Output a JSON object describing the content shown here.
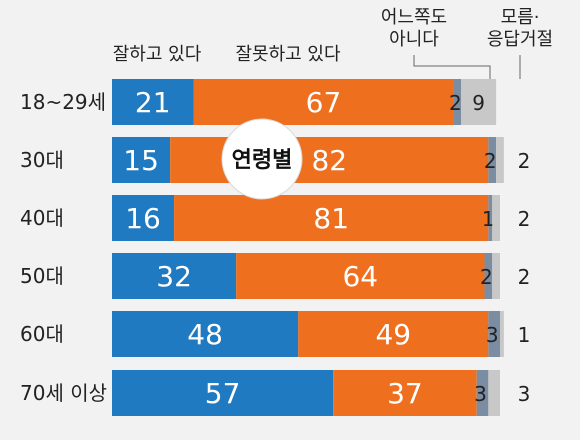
{
  "chart_data": {
    "type": "bar",
    "stacked": true,
    "orientation": "horizontal",
    "badge": "연령별",
    "categories": [
      "18~29세",
      "30대",
      "40대",
      "50대",
      "60대",
      "70세 이상"
    ],
    "series": [
      {
        "name": "잘하고 있다",
        "name_lines": [
          "잘하고 있다"
        ],
        "color": "#1f7ac2",
        "values": [
          21,
          15,
          16,
          32,
          48,
          57
        ]
      },
      {
        "name": "잘못하고 있다",
        "name_lines": [
          "잘못하고 있다"
        ],
        "color": "#ee6f1d",
        "values": [
          67,
          82,
          81,
          64,
          49,
          37
        ]
      },
      {
        "name": "어느쪽도 아니다",
        "name_lines": [
          "어느쪽도",
          "아니다"
        ],
        "color": "#7a8da3",
        "values": [
          2,
          2,
          1,
          2,
          3,
          3
        ]
      },
      {
        "name": "모름·응답거절",
        "name_lines": [
          "모름·",
          "응답거절"
        ],
        "color": "#c8c8c8",
        "values": [
          9,
          2,
          2,
          2,
          1,
          3
        ]
      }
    ],
    "xlim": [
      0,
      100
    ]
  }
}
